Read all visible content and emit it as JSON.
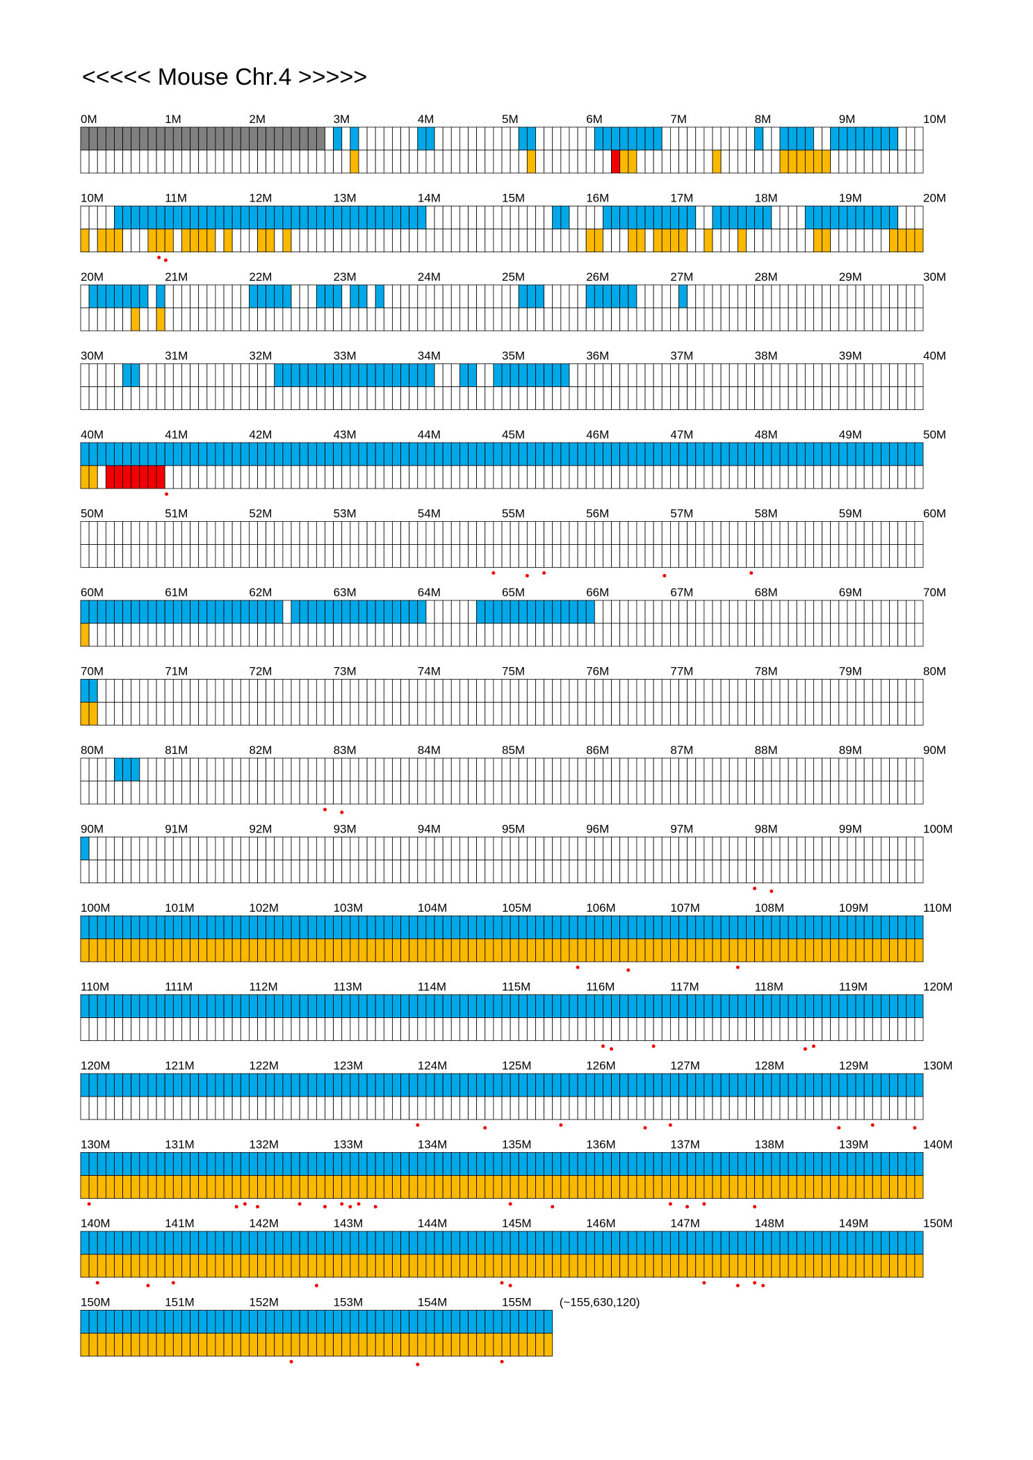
{
  "title": "<<<<< Mouse Chr.4 >>>>>",
  "end_note": "(~155,630,120)",
  "colors": {
    "top_track": "#00a8e8",
    "bottom_track": "#fbb800",
    "highlight": "#f20000",
    "gap": "#808080",
    "dot": "#f20000"
  },
  "chart_data": {
    "type": "heatmap",
    "chromosome": "Chr.4",
    "end_bp": 155630120,
    "bins_per_Mb": 10,
    "rows": [
      {
        "start": "0M",
        "end": "10M",
        "gap": "0000000000000000000000000000011111111111111111111111111111111111111111111111111111111111111111111111",
        "top": "0000000000000000000000000000001010000000110000000000110000000111111110000000000010011110011111111000",
        "bot": "0000000000000000000000000000000010000000000000000000010000000000110000000001000000011111100000000000",
        "hl": "0000000000000000000000000000000000000000000000000000000000000001000000000000000000000000000000000000",
        "dots": []
      },
      {
        "start": "10M",
        "end": "20M",
        "gap": "1111111111111111111111111111111111111111111111111111111111111111111111111111111111111111111111111111",
        "top": "0000111111111111111111111111111111111111100000000000000011000011111111111001111111000011111111111000",
        "bot": "1011100011101111010001101000000000000000000000000000000000001100011011110010001000000001100000001111",
        "hl": "0000000000000000000000000000000000000000000000000000000000000000000000000000000000000000000000000000",
        "dots": [
          9.3,
          10.1
        ]
      },
      {
        "start": "20M",
        "end": "30M",
        "gap": "1111111111111111111111111111111111111111111111111111111111111111111111111111111111111111111111111111",
        "top": "0111111101000000000011111000111011010000000000000000111000001111110000010000000000000000000000000000",
        "bot": "0000001001000000000000000000000000000000000000000000000000000000000000000000000000000000000000000000",
        "hl": "0000000000000000000000000000000000000000000000000000000000000000000000000000000000000000000000000000",
        "dots": []
      },
      {
        "start": "30M",
        "end": "40M",
        "gap": "1111111111111111111111111111111111111111111111111111111111111111111111111111111111111111111111111111",
        "top": "0000011000000000000000011111111111111111110001100111111111000000000000000000000000000000000000000000",
        "bot": "0000000000000000000000000000000000000000000000000000000000000000000000000000000000000000000000000000",
        "hl": "0000000000000000000000000000000000000000000000000000000000000000000000000000000000000000000000000000",
        "dots": []
      },
      {
        "start": "40M",
        "end": "50M",
        "gap": "1111111111111111111111111111111111111111111111111111111111111111111111111111111111111111111111111111",
        "top": "1111111111111111111111111111111111111111111111111111111111111111111111111111111111111111111111111111",
        "bot": "1100000000000000000000000000000000000000000000000000000000000000000000000000000000000000000000000000",
        "hl": "0001111111000000000000000000000000000000000000000000000000000000000000000000000000000000000000000000",
        "dots": [
          10.2
        ]
      },
      {
        "start": "50M",
        "end": "60M",
        "gap": "1111111111111111111111111111111111111111111111111111111111111111111111111111111111111111111111111111",
        "top": "0000000000000000000000000000000000000000000000000000000000000000000000000000000000000000000000000000",
        "bot": "0000000000000000000000000000000000000000000000000000000000000000000000000000000000000000000000000000",
        "hl": "0000000000000000000000000000000000000000000000000000000000000000000000000000000000000000000000000000",
        "dots": [
          49.0,
          53.0,
          55.0,
          69.3,
          79.6
        ]
      },
      {
        "start": "60M",
        "end": "70M",
        "gap": "1111111111111111111111111111111111111111111111111111111111111111111111111111111111111111111111111111",
        "top": "1111111111111111111111110111111111111111100000011111111111111000000000000000000000000000000000000000",
        "bot": "1000000000000000000000000000000000000000000000000000000000000000000000000000000000000000000000000000",
        "hl": "0000000000000000000000000000000000000000000000000000000000000000000000000000000000000000000000000000",
        "dots": []
      },
      {
        "start": "70M",
        "end": "80M",
        "gap": "1111111111111111111111111111111111111111111111111111111111111111111111111111111111111111111111111111",
        "top": "1100000000000000000000000000000000000000000000000000000000000000000000000000000000000000000000000000",
        "bot": "1100000000000000000000000000000000000000000000000000000000000000000000000000000000000000000000000000",
        "hl": "0000000000000000000000000000000000000000000000000000000000000000000000000000000000000000000000000000",
        "dots": []
      },
      {
        "start": "80M",
        "end": "90M",
        "gap": "1111111111111111111111111111111111111111111111111111111111111111111111111111111111111111111111111111",
        "top": "0000111000000000000000000000000000000000000000000000000000000000000000000000000000000000000000000000",
        "bot": "0000000000000000000000000000000000000000000000000000000000000000000000000000000000000000000000000000",
        "hl": "0000000000000000000000000000000000000000000000000000000000000000000000000000000000000000000000000000",
        "dots": [
          29.0,
          31.0
        ]
      },
      {
        "start": "90M",
        "end": "100M",
        "gap": "1111111111111111111111111111111111111111111111111111111111111111111111111111111111111111111111111111",
        "top": "1000000000000000000000000000000000000000000000000000000000000000000000000000000000000000000000000000",
        "bot": "0000000000000000000000000000000000000000000000000000000000000000000000000000000000000000000000000000",
        "hl": "0000000000000000000000000000000000000000000000000000000000000000000000000000000000000000000000000000",
        "dots": [
          80.0,
          82.0
        ]
      },
      {
        "start": "100M",
        "end": "110M",
        "gap": "1111111111111111111111111111111111111111111111111111111111111111111111111111111111111111111111111111",
        "top": "1111111111111111111111111111111111111111111111111111111111111111111111111111111111111111111111111111",
        "bot": "1111111111111111111111111111111111111111111111111111111111111111111111111111111111111111111111111111",
        "hl": "0000000000000000000000000000000000000000000000000000000000000000000000000000000000000000000000000000",
        "dots": [
          59.0,
          65.0,
          78.0
        ]
      },
      {
        "start": "110M",
        "end": "120M",
        "gap": "1111111111111111111111111111111111111111111111111111111111111111111111111111111111111111111111111111",
        "top": "1111111111111111111111111111111111111111111111111111111111111111111111111111111111111111111111111111",
        "bot": "0000000000000000000000000000000000000000000000000000000000000000000000000000000000000000000000000000",
        "hl": "0000000000000000000000000000000000000000000000000000000000000000000000000000000000000000000000000000",
        "dots": [
          62.0,
          63.0,
          68.0,
          86.0,
          87.0
        ]
      },
      {
        "start": "120M",
        "end": "130M",
        "gap": "1111111111111111111111111111111111111111111111111111111111111111111111111111111111111111111111111111",
        "top": "1111111111111111111111111111111111111111111111111111111111111111111111111111111111111111111111111111",
        "bot": "0000000000000000000000000000000000000000000000000000000000000000000000000000000000000000000000000000",
        "hl": "0000000000000000000000000000000000000000000000000000000000000000000000000000000000000000000000000000",
        "dots": [
          40.0,
          48.0,
          57.0,
          67.0,
          70.0,
          90.0,
          94.0,
          99.0
        ]
      },
      {
        "start": "130M",
        "end": "140M",
        "gap": "1111111111111111111111111111111111111111111111111111111111111111111111111111111111111111111111111111",
        "top": "1111111111111111111111111111111111111111111111111111111111111111111111111111111111111111111111111111",
        "bot": "1111111111111111111111111111111111111111111111111111111111111111111111111111111111111111111111111111",
        "hl": "0000000000000000000000000000000000000000000000000000000000000000000000000000000000000000000000000000",
        "dots": [
          1.0,
          18.5,
          19.5,
          21.0,
          26.0,
          29.0,
          31.0,
          32.0,
          33.0,
          35.0,
          51.0,
          56.0,
          70.0,
          72.0,
          74.0,
          80.0
        ]
      },
      {
        "start": "140M",
        "end": "150M",
        "gap": "1111111111111111111111111111111111111111111111111111111111111111111111111111111111111111111111111111",
        "top": "1111111111111111111111111111111111111111111111111111111111111111111111111111111111111111111111111111",
        "bot": "1111111111111111111111111111111111111111111111111111111111111111111111111111111111111111111111111111",
        "hl": "0000000000000000000000000000000000000000000000000000000000000000000000000000000000000000000000000000",
        "dots": [
          2.0,
          8.0,
          11.0,
          28.0,
          50.0,
          51.0,
          74.0,
          78.0,
          80.0,
          81.0
        ]
      },
      {
        "start": "150M",
        "end": "155.6M",
        "gap": "11111111111111111111111111111111111111111111111111111111",
        "top": "11111111111111111111111111111111111111111111111111111111",
        "bot": "11111111111111111111111111111111111111111111111111111111",
        "hl": "00000000000000000000000000000000000000000000000000000000",
        "dots": [
          25.0,
          40.0,
          50.0
        ]
      }
    ]
  }
}
